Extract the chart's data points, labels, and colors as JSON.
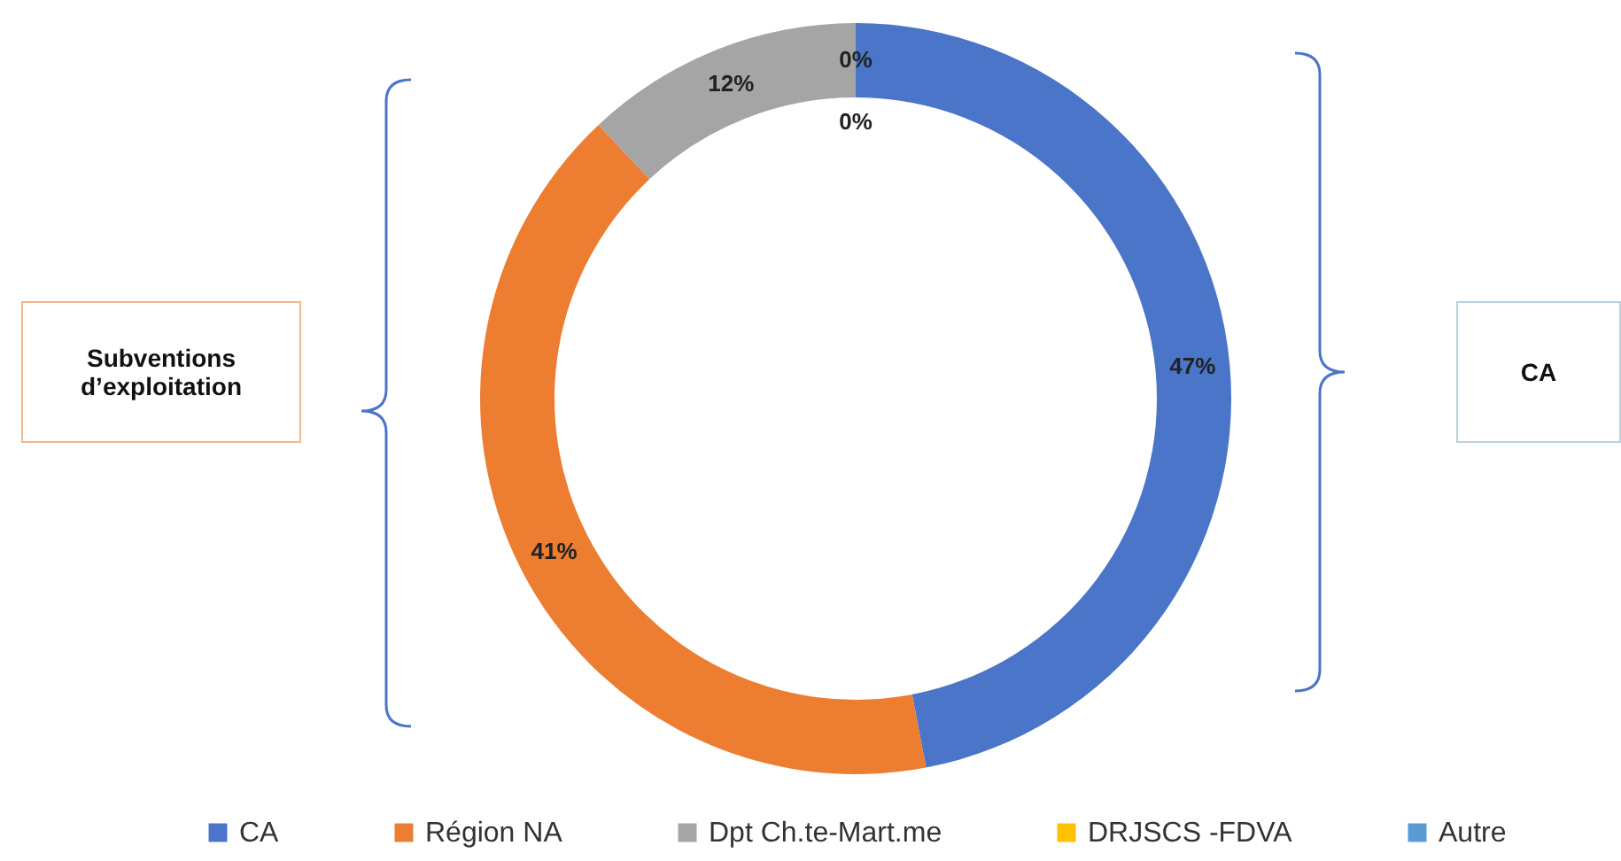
{
  "chart_data": {
    "type": "donut",
    "categories": [
      "CA",
      "Région NA",
      "Dpt Ch.te-Mart.me",
      "DRJSCS -FDVA",
      "Autre"
    ],
    "values": [
      47,
      41,
      12,
      0,
      0
    ],
    "colors": [
      "#4a75c8",
      "#ed7d31",
      "#a5a5a5",
      "#ffc000",
      "#5b9bd5"
    ],
    "value_labels": [
      "47%",
      "41%",
      "12%",
      "0%",
      "0%"
    ],
    "legend": "bottom",
    "annotations": [
      "Subventions d’exploitation",
      "CA"
    ]
  }
}
